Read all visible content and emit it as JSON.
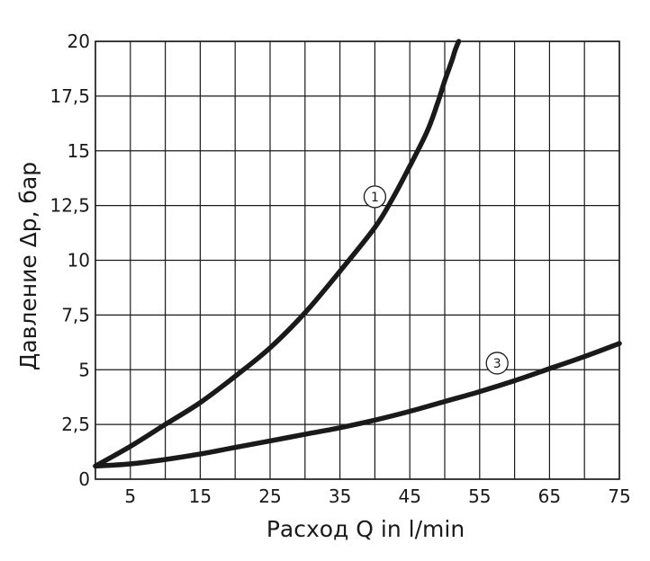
{
  "chart_data": {
    "type": "line",
    "title": "",
    "xlabel": "Расход Q in l/min",
    "ylabel": "Давление Δp, бар",
    "xlim": [
      0,
      75
    ],
    "ylim": [
      0,
      20
    ],
    "x_grid_step": 5,
    "y_grid_step": 2.5,
    "grid": true,
    "x_ticks": [
      "5",
      "15",
      "25",
      "35",
      "45",
      "55",
      "65",
      "75"
    ],
    "x_tick_values": [
      5,
      15,
      25,
      35,
      45,
      55,
      65,
      75
    ],
    "y_ticks": [
      "0",
      "2,5",
      "5",
      "7,5",
      "10",
      "12,5",
      "15",
      "17,5",
      "20"
    ],
    "y_tick_values": [
      0,
      2.5,
      5,
      7.5,
      10,
      12.5,
      15,
      17.5,
      20
    ],
    "series": [
      {
        "name": "1",
        "color": "#1a1a1a",
        "points": [
          [
            0,
            0.6
          ],
          [
            5,
            1.5
          ],
          [
            10,
            2.5
          ],
          [
            15,
            3.5
          ],
          [
            20,
            4.7
          ],
          [
            25,
            6.0
          ],
          [
            30,
            7.6
          ],
          [
            35,
            9.5
          ],
          [
            40,
            11.5
          ],
          [
            42.5,
            12.8
          ],
          [
            45,
            14.3
          ],
          [
            47.5,
            15.9
          ],
          [
            49,
            17.2
          ],
          [
            50,
            18.2
          ],
          [
            51,
            19.1
          ],
          [
            51.5,
            19.6
          ],
          [
            52,
            20
          ]
        ],
        "label_at": [
          40,
          12.9
        ]
      },
      {
        "name": "3",
        "color": "#1a1a1a",
        "points": [
          [
            0,
            0.6
          ],
          [
            5,
            0.7
          ],
          [
            10,
            0.9
          ],
          [
            15,
            1.15
          ],
          [
            20,
            1.45
          ],
          [
            25,
            1.75
          ],
          [
            30,
            2.05
          ],
          [
            35,
            2.35
          ],
          [
            40,
            2.7
          ],
          [
            45,
            3.1
          ],
          [
            50,
            3.55
          ],
          [
            55,
            4.0
          ],
          [
            60,
            4.5
          ],
          [
            65,
            5.05
          ],
          [
            70,
            5.6
          ],
          [
            75,
            6.2
          ]
        ],
        "label_at": [
          57.5,
          5.3
        ]
      }
    ]
  }
}
